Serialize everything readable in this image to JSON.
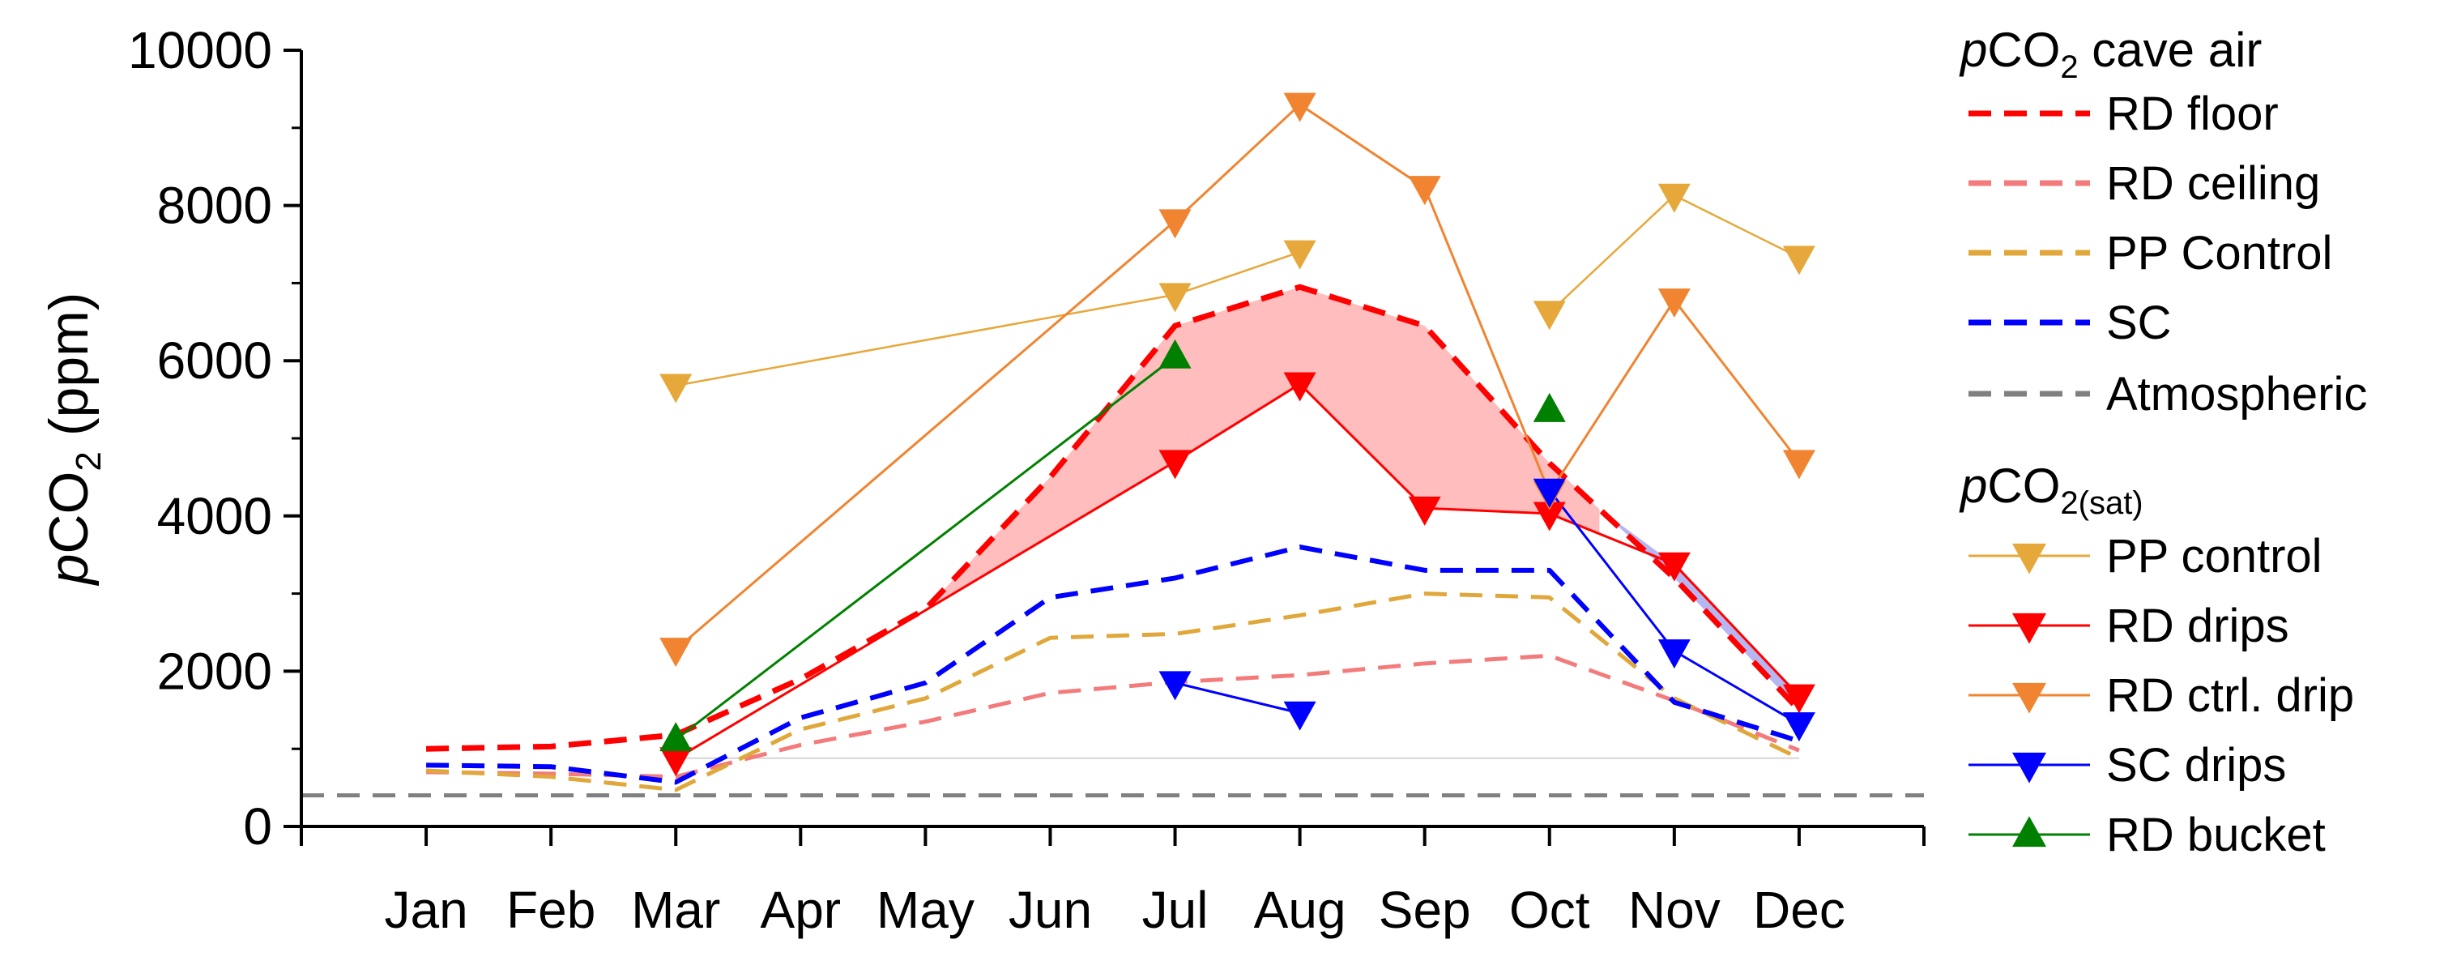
{
  "chart_data": {
    "type": "line",
    "title": "",
    "ylabel": {
      "italic": "p",
      "base": "CO",
      "sub": "2",
      "rest": " (ppm)"
    },
    "xlabel": "",
    "ylim": [
      0,
      10000
    ],
    "yticks": [
      0,
      2000,
      4000,
      6000,
      8000,
      10000
    ],
    "yticks_minor": [
      1000,
      3000,
      5000,
      7000,
      9000
    ],
    "xlim": [
      0,
      13
    ],
    "categories": [
      "Jan",
      "Feb",
      "Mar",
      "Apr",
      "May",
      "Jun",
      "Jul",
      "Aug",
      "Sep",
      "Oct",
      "Nov",
      "Dec"
    ],
    "category_positions": [
      1,
      2,
      3,
      4,
      5,
      6,
      7,
      8,
      9,
      10,
      11,
      12
    ],
    "grid": false,
    "legend_position": "right",
    "legend_group_cave_air": {
      "italic": "p",
      "base": "CO",
      "sub": "2",
      "rest": " cave air"
    },
    "legend_group_sat": {
      "italic": "p",
      "base": "CO",
      "sub": "2(sat)",
      "rest": ""
    },
    "colors": {
      "rd_floor": "#ff0000",
      "rd_ceiling": "#f37b7b",
      "pp_control_air": "#e0a73a",
      "sc_air": "#0000ff",
      "atmospheric": "#808080",
      "pp_control_drip": "#e6a83a",
      "rd_drips": "#ff0000",
      "rd_ctrl_drip": "#f08430",
      "sc_drips": "#0000ff",
      "rd_bucket": "#008000",
      "fill_red": "#ffbdbd",
      "fill_blue": "#b6b6f0"
    },
    "series_cave_air": [
      {
        "key": "rd_floor",
        "name": "RD floor",
        "x": [
          1,
          2,
          3,
          4,
          5,
          6,
          7,
          8,
          9,
          10,
          11,
          12
        ],
        "y": [
          1000,
          1030,
          1180,
          1900,
          2800,
          4500,
          6450,
          6950,
          6450,
          4680,
          3200,
          1500
        ]
      },
      {
        "key": "rd_ceiling",
        "name": "RD ceiling",
        "x": [
          1,
          2,
          3,
          4,
          5,
          6,
          7,
          8,
          9,
          10,
          11,
          12
        ],
        "y": [
          700,
          680,
          640,
          1050,
          1350,
          1720,
          1860,
          1950,
          2100,
          2200,
          1620,
          980
        ]
      },
      {
        "key": "pp_control_air",
        "name": "PP Control",
        "x": [
          1,
          2,
          3,
          4,
          5,
          6,
          7,
          8,
          9,
          10,
          11,
          12
        ],
        "y": [
          720,
          640,
          470,
          1250,
          1650,
          2430,
          2480,
          2720,
          3000,
          2950,
          1650,
          880
        ]
      },
      {
        "key": "sc_air",
        "name": "SC",
        "x": [
          1,
          2,
          3,
          4,
          5,
          6,
          7,
          8,
          9,
          10,
          11,
          12
        ],
        "y": [
          790,
          770,
          570,
          1400,
          1850,
          2950,
          3200,
          3600,
          3300,
          3300,
          1600,
          1100
        ]
      },
      {
        "key": "atmospheric",
        "name": "Atmospheric",
        "x": [
          0,
          13
        ],
        "y": [
          400,
          400
        ]
      }
    ],
    "series_sat": [
      {
        "key": "pp_control_drip",
        "name": "PP control",
        "x": [
          3,
          7,
          8
        ],
        "y": [
          5680,
          6850,
          7400
        ],
        "x2": [
          10,
          11,
          12
        ],
        "y2": [
          6620,
          8130,
          7330
        ],
        "marker": "triangle-down"
      },
      {
        "key": "rd_drips",
        "name": "RD drips",
        "x": [
          3,
          7,
          8,
          9,
          10,
          11,
          12
        ],
        "y": [
          870,
          4700,
          5700,
          4100,
          4030,
          3380,
          1680
        ],
        "marker": "triangle-down"
      },
      {
        "key": "rd_ctrl_drip",
        "name": "RD ctrl. drip",
        "x": [
          3,
          7,
          8,
          9,
          10,
          11,
          12
        ],
        "y": [
          2280,
          7800,
          9300,
          8230,
          4300,
          6780,
          4700
        ],
        "marker": "triangle-down"
      },
      {
        "key": "sc_drips",
        "name": "SC drips",
        "x": [
          7,
          8
        ],
        "y": [
          1850,
          1460
        ],
        "x2": [
          10,
          11,
          12
        ],
        "y2": [
          4330,
          2260,
          1320
        ],
        "marker": "triangle-down"
      },
      {
        "key": "rd_bucket",
        "name": "RD bucket",
        "x": [
          3,
          7
        ],
        "y": [
          1120,
          6050
        ],
        "x2": [
          10
        ],
        "y2": [
          5360
        ],
        "marker": "triangle-up"
      }
    ],
    "baseline_line": {
      "x": [
        3,
        12
      ],
      "y": [
        880,
        880
      ]
    }
  }
}
